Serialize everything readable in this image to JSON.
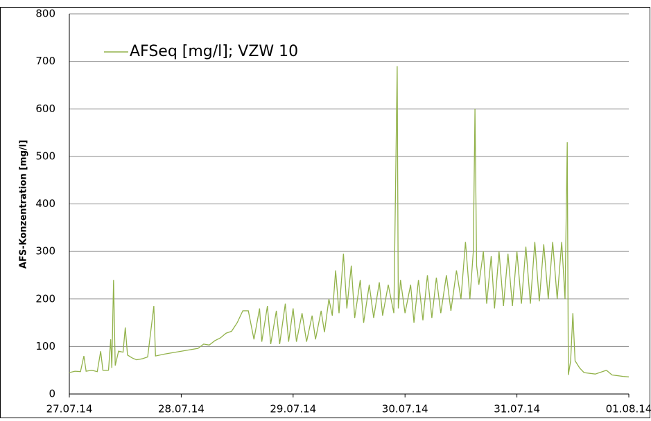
{
  "chart_data": {
    "type": "line",
    "y_label": "AFS-Konzentration [mg/l]",
    "xlim": [
      0,
      5
    ],
    "xticks": [
      {
        "value": 0,
        "label": "27.07.14"
      },
      {
        "value": 1,
        "label": "28.07.14"
      },
      {
        "value": 2,
        "label": "29.07.14"
      },
      {
        "value": 3,
        "label": "30.07.14"
      },
      {
        "value": 4,
        "label": "31.07.14"
      },
      {
        "value": 5,
        "label": "01.08.14"
      }
    ],
    "ylim": [
      0,
      800
    ],
    "yticks": [
      0,
      100,
      200,
      300,
      400,
      500,
      600,
      700,
      800
    ],
    "grid": true,
    "legend": "top-left",
    "x": [
      0,
      0.05,
      0.1,
      0.13,
      0.15,
      0.2,
      0.25,
      0.28,
      0.3,
      0.35,
      0.37,
      0.38,
      0.395,
      0.41,
      0.44,
      0.48,
      0.5,
      0.52,
      0.56,
      0.6,
      0.65,
      0.7,
      0.755,
      0.77,
      0.85,
      0.95,
      1.05,
      1.15,
      1.2,
      1.25,
      1.3,
      1.35,
      1.4,
      1.45,
      1.5,
      1.55,
      1.6,
      1.65,
      1.7,
      1.72,
      1.77,
      1.8,
      1.85,
      1.88,
      1.93,
      1.96,
      2.0,
      2.03,
      2.08,
      2.12,
      2.17,
      2.2,
      2.25,
      2.28,
      2.32,
      2.35,
      2.38,
      2.41,
      2.45,
      2.48,
      2.52,
      2.55,
      2.6,
      2.63,
      2.68,
      2.72,
      2.77,
      2.8,
      2.85,
      2.9,
      2.93,
      2.94,
      2.96,
      3.0,
      3.05,
      3.08,
      3.12,
      3.16,
      3.2,
      3.24,
      3.28,
      3.32,
      3.37,
      3.41,
      3.46,
      3.5,
      3.54,
      3.58,
      3.61,
      3.625,
      3.64,
      3.66,
      3.7,
      3.73,
      3.77,
      3.8,
      3.84,
      3.88,
      3.92,
      3.96,
      4.0,
      4.04,
      4.08,
      4.12,
      4.16,
      4.2,
      4.24,
      4.28,
      4.32,
      4.36,
      4.4,
      4.43,
      4.45,
      4.46,
      4.48,
      4.5,
      4.52,
      4.56,
      4.6,
      4.7,
      4.8,
      4.85,
      4.95,
      5.0
    ],
    "series": [
      {
        "name": "AFSeq [mg/l]; VZW 10",
        "color": "#92b24a",
        "values": [
          45,
          48,
          47,
          80,
          48,
          50,
          47,
          90,
          50,
          50,
          115,
          55,
          240,
          60,
          90,
          88,
          140,
          82,
          76,
          72,
          74,
          78,
          185,
          80,
          84,
          88,
          92,
          96,
          105,
          103,
          112,
          118,
          128,
          132,
          150,
          175,
          175,
          115,
          180,
          110,
          185,
          105,
          175,
          105,
          190,
          110,
          180,
          110,
          170,
          110,
          165,
          115,
          175,
          130,
          200,
          165,
          260,
          170,
          295,
          180,
          270,
          160,
          240,
          150,
          230,
          160,
          235,
          165,
          230,
          170,
          690,
          180,
          240,
          170,
          230,
          150,
          240,
          155,
          250,
          160,
          245,
          170,
          250,
          175,
          260,
          200,
          320,
          200,
          300,
          600,
          270,
          230,
          300,
          190,
          290,
          180,
          300,
          185,
          295,
          185,
          300,
          190,
          310,
          190,
          320,
          195,
          315,
          200,
          320,
          200,
          320,
          200,
          530,
          40,
          70,
          170,
          70,
          55,
          45,
          42,
          50,
          40,
          37,
          36
        ]
      }
    ]
  }
}
